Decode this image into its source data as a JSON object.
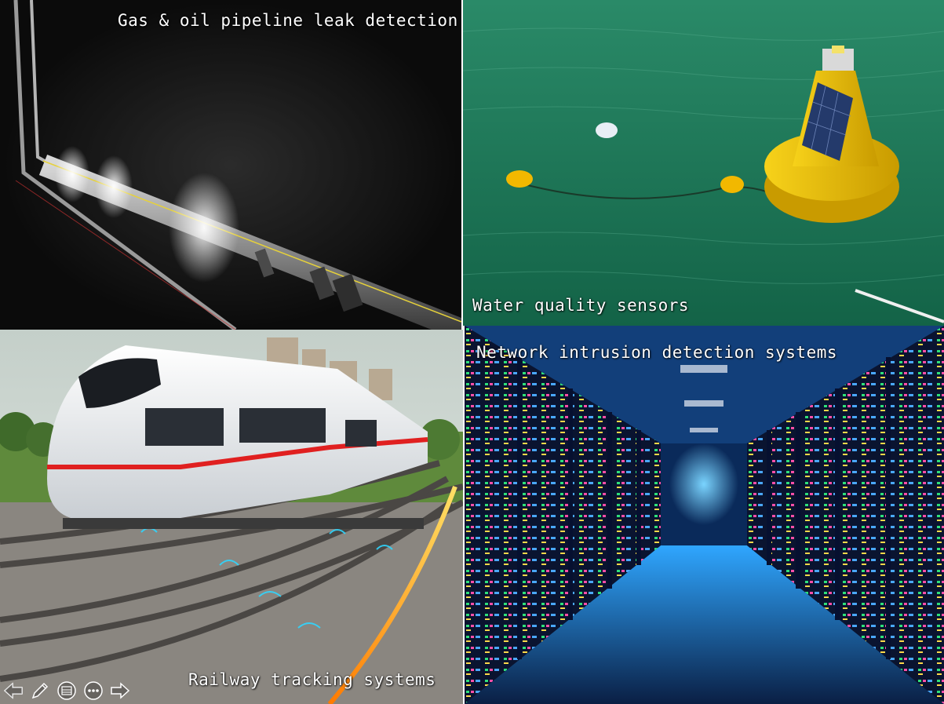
{
  "slide": {
    "panels": [
      {
        "id": "pipeline",
        "caption": "Gas & oil pipeline leak detection"
      },
      {
        "id": "water",
        "caption": "Water quality sensors"
      },
      {
        "id": "rail",
        "caption": "Railway tracking systems"
      },
      {
        "id": "network",
        "caption": "Network intrusion detection systems"
      }
    ]
  },
  "controls": [
    {
      "icon": "arrow-left-icon"
    },
    {
      "icon": "pen-icon"
    },
    {
      "icon": "slides-icon"
    },
    {
      "icon": "more-icon"
    },
    {
      "icon": "arrow-right-icon"
    }
  ],
  "colors": {
    "pipeline_bg": "#0d0d0d",
    "water_bg": "#1f7a5a",
    "buoy": "#f2c200",
    "rail_sky": "#cfd9d6",
    "network_bg": "#0a2a5a",
    "network_glow": "#2fb6ff"
  }
}
